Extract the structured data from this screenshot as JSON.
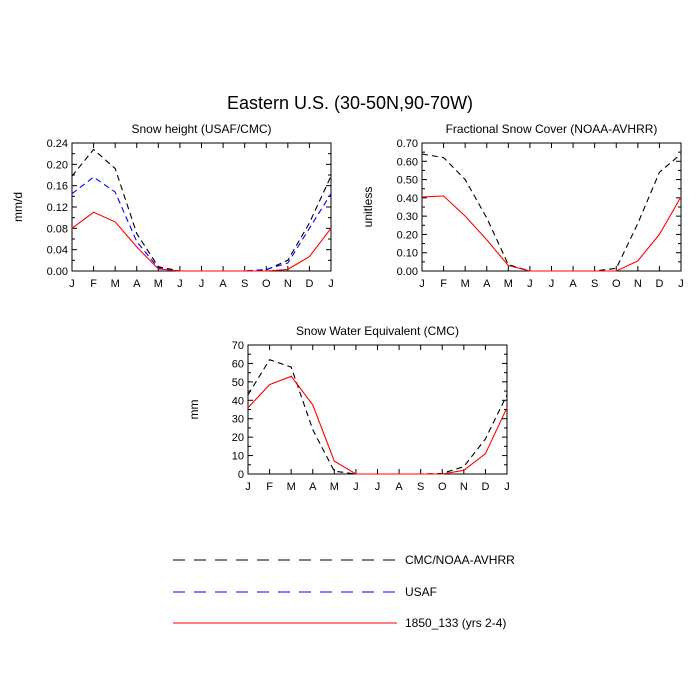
{
  "title": "Eastern U.S. (30-50N,90-70W)",
  "legend": [
    {
      "label": "CMC/NOAA-AVHRR",
      "color": "#000000",
      "dash": "dashed"
    },
    {
      "label": "USAF",
      "color": "#0000ff",
      "dash": "dashed"
    },
    {
      "label": "1850_133 (yrs 2-4)",
      "color": "#ff0000",
      "dash": "solid"
    }
  ],
  "chart_data": [
    {
      "type": "line",
      "title": "Snow height (USAF/CMC)",
      "ylabel": "mm/d",
      "xlabel": "",
      "categories": [
        "J",
        "F",
        "M",
        "A",
        "M",
        "J",
        "J",
        "A",
        "S",
        "O",
        "N",
        "D",
        "J"
      ],
      "ylim": [
        0,
        0.24
      ],
      "yticks": [
        "0.00",
        "0.04",
        "0.08",
        "0.12",
        "0.16",
        "0.20",
        "0.24"
      ],
      "series": [
        {
          "name": "CMC/NOAA-AVHRR",
          "color": "#000000",
          "dash": "dashed",
          "values": [
            0.178,
            0.228,
            0.192,
            0.07,
            0.008,
            0.0,
            0.0,
            0.0,
            0.0,
            0.002,
            0.02,
            0.09,
            0.178
          ]
        },
        {
          "name": "USAF",
          "color": "#0000ff",
          "dash": "dashed",
          "values": [
            0.145,
            0.176,
            0.148,
            0.055,
            0.006,
            0.0,
            0.0,
            0.0,
            0.0,
            0.003,
            0.015,
            0.08,
            0.145
          ]
        },
        {
          "name": "1850_133 (yrs 2-4)",
          "color": "#ff0000",
          "dash": "solid",
          "values": [
            0.08,
            0.11,
            0.092,
            0.045,
            0.004,
            0.0,
            0.0,
            0.0,
            0.0,
            0.0,
            0.003,
            0.027,
            0.08
          ]
        }
      ]
    },
    {
      "type": "line",
      "title": "Fractional Snow Cover (NOAA-AVHRR)",
      "ylabel": "unitless",
      "xlabel": "",
      "categories": [
        "J",
        "F",
        "M",
        "A",
        "M",
        "J",
        "J",
        "A",
        "S",
        "O",
        "N",
        "D",
        "J"
      ],
      "ylim": [
        0,
        0.7
      ],
      "yticks": [
        "0.00",
        "0.10",
        "0.20",
        "0.30",
        "0.40",
        "0.50",
        "0.60",
        "0.70"
      ],
      "series": [
        {
          "name": "CMC/NOAA-AVHRR",
          "color": "#000000",
          "dash": "dashed",
          "values": [
            0.64,
            0.62,
            0.5,
            0.29,
            0.035,
            0.0,
            0.0,
            0.0,
            0.0,
            0.015,
            0.26,
            0.54,
            0.64
          ]
        },
        {
          "name": "1850_133 (yrs 2-4)",
          "color": "#ff0000",
          "dash": "solid",
          "values": [
            0.405,
            0.41,
            0.3,
            0.17,
            0.03,
            0.0,
            0.0,
            0.0,
            0.0,
            0.0,
            0.055,
            0.2,
            0.405
          ]
        }
      ]
    },
    {
      "type": "line",
      "title": "Snow Water Equivalent (CMC)",
      "ylabel": "mm",
      "xlabel": "",
      "categories": [
        "J",
        "F",
        "M",
        "A",
        "M",
        "J",
        "J",
        "A",
        "S",
        "O",
        "N",
        "D",
        "J"
      ],
      "ylim": [
        0,
        70
      ],
      "yticks": [
        "0",
        "10",
        "20",
        "30",
        "40",
        "50",
        "60",
        "70"
      ],
      "series": [
        {
          "name": "CMC/NOAA-AVHRR",
          "color": "#000000",
          "dash": "dashed",
          "values": [
            43,
            62,
            58,
            24,
            1.5,
            0.0,
            0.0,
            0.0,
            0.0,
            0.3,
            4,
            19,
            43
          ]
        },
        {
          "name": "1850_133 (yrs 2-4)",
          "color": "#ff0000",
          "dash": "solid",
          "values": [
            36,
            48.5,
            53,
            37.5,
            7,
            0.0,
            0.0,
            0.0,
            0.0,
            0.0,
            2,
            11,
            36
          ]
        }
      ]
    }
  ]
}
